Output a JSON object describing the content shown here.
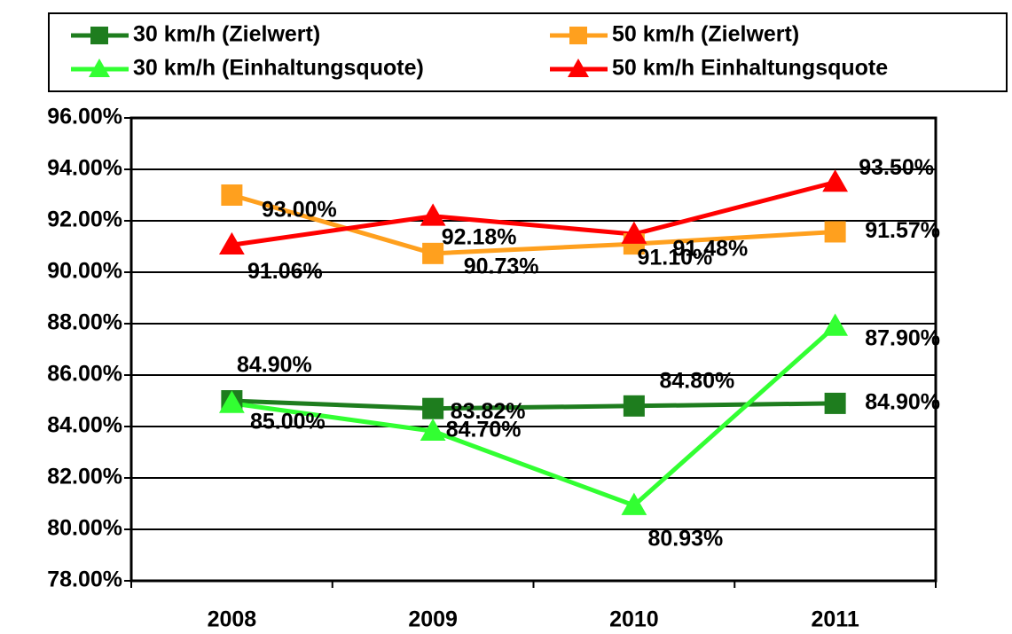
{
  "chart_data": {
    "type": "line",
    "categories": [
      "2008",
      "2009",
      "2010",
      "2011"
    ],
    "series": [
      {
        "name": "30 km/h (Zielwert)",
        "color": "#1e7d1e",
        "marker": "square",
        "values": [
          85.0,
          84.7,
          84.8,
          84.9
        ],
        "value_labels": [
          "85.00%",
          "84.70%",
          "84.80%",
          "84.90%"
        ]
      },
      {
        "name": "50 km/h (Zielwert)",
        "color": "#ffa01e",
        "marker": "square",
        "values": [
          93.0,
          90.73,
          91.1,
          91.57
        ],
        "value_labels": [
          "93.00%",
          "90.73%",
          "91.10%",
          "91.57%"
        ]
      },
      {
        "name": "30 km/h (Einhaltungsquote)",
        "color": "#32ff32",
        "marker": "triangle",
        "values": [
          84.9,
          83.82,
          80.93,
          87.9
        ],
        "value_labels": [
          "84.90%",
          "83.82%",
          "80.93%",
          "87.90%"
        ]
      },
      {
        "name": "50 km/h Einhaltungsquote",
        "color": "#ff0000",
        "marker": "triangle",
        "values": [
          91.06,
          92.18,
          91.48,
          93.5
        ],
        "value_labels": [
          "91.06%",
          "92.18%",
          "91.48%",
          "93.50%"
        ]
      }
    ],
    "ylim": [
      78,
      96
    ],
    "yticks": [
      {
        "value": 78,
        "label": "78.00%"
      },
      {
        "value": 80,
        "label": "80.00%"
      },
      {
        "value": 82,
        "label": "82.00%"
      },
      {
        "value": 84,
        "label": "84.00%"
      },
      {
        "value": 86,
        "label": "86.00%"
      },
      {
        "value": 88,
        "label": "88.00%"
      },
      {
        "value": 90,
        "label": "90.00%"
      },
      {
        "value": 92,
        "label": "92.00%"
      },
      {
        "value": 94,
        "label": "94.00%"
      },
      {
        "value": 96,
        "label": "96.00%"
      }
    ],
    "grid": true,
    "legend": "top"
  }
}
